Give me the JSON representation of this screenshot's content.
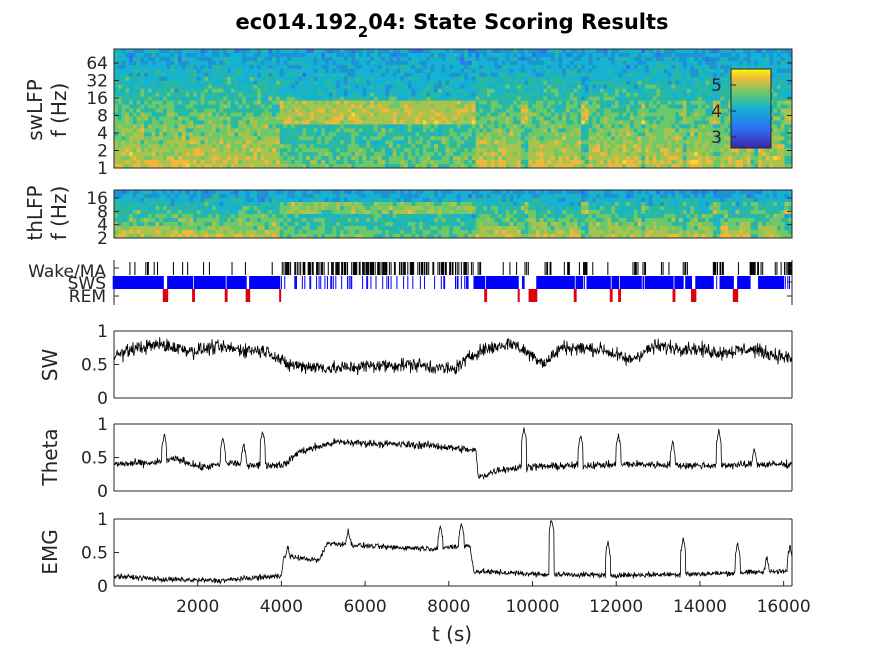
{
  "chart_data": {
    "type": "line",
    "title": {
      "prefix": "ec014.192",
      "sub": "2",
      "suffix": "04: State Scoring Results"
    },
    "xlabel": "t (s)",
    "xlim": [
      0,
      16200
    ],
    "xticks": [
      "2000",
      "4000",
      "6000",
      "8000",
      "10000",
      "12000",
      "14000",
      "16000"
    ],
    "panels": {
      "swlfp": {
        "kind": "spectrogram",
        "ylabel": [
          "swLFP",
          "f (Hz)"
        ],
        "yticks": [
          "1",
          "2",
          "4",
          "8",
          "16",
          "32",
          "64"
        ],
        "colorbar_ticks": [
          "3",
          "4",
          "5"
        ],
        "colors": {
          "low": "#3e26a8",
          "mid": "#2ab8a0",
          "high": "#f9fb0e",
          "warm": "#f2b33a"
        }
      },
      "thlfp": {
        "kind": "spectrogram",
        "ylabel": [
          "thLFP",
          "f (Hz)"
        ],
        "yticks": [
          "2",
          "4",
          "8",
          "16"
        ]
      },
      "states": {
        "kind": "hypnogram",
        "labels": [
          "Wake/MA",
          "SWS",
          "REM"
        ],
        "colors": {
          "wake": "#000000",
          "sws": "#0000ff",
          "rem": "#e0000b"
        },
        "wake_intervals": [
          [
            4000,
            8600
          ],
          [
            9700,
            9900
          ],
          [
            11200,
            11300
          ],
          [
            12600,
            12700
          ],
          [
            13600,
            13700
          ],
          [
            14300,
            14500
          ],
          [
            15200,
            15400
          ],
          [
            16000,
            16200
          ]
        ],
        "rem_intervals": [
          [
            1180,
            1280
          ],
          [
            1880,
            1920
          ],
          [
            2650,
            2700
          ],
          [
            3150,
            3250
          ],
          [
            3950,
            4000
          ],
          [
            4900,
            4950
          ],
          [
            5200,
            5300
          ],
          [
            5550,
            5600
          ],
          [
            6650,
            6700
          ],
          [
            8850,
            8900
          ],
          [
            9650,
            9700
          ],
          [
            9900,
            10100
          ],
          [
            11000,
            11050
          ],
          [
            11850,
            11900
          ],
          [
            12050,
            12100
          ],
          [
            13350,
            13400
          ],
          [
            13800,
            13900
          ],
          [
            14800,
            14900
          ],
          [
            15300,
            15350
          ]
        ]
      },
      "sw": {
        "kind": "trace",
        "ylabel": "SW",
        "ylim": [
          0,
          1
        ],
        "yticks": [
          "0",
          "0.5",
          "1"
        ],
        "profile": [
          [
            0,
            0.62
          ],
          [
            500,
            0.74
          ],
          [
            1100,
            0.8
          ],
          [
            1900,
            0.7
          ],
          [
            2400,
            0.76
          ],
          [
            3100,
            0.72
          ],
          [
            3700,
            0.7
          ],
          [
            4100,
            0.5
          ],
          [
            5300,
            0.44
          ],
          [
            6100,
            0.48
          ],
          [
            7200,
            0.5
          ],
          [
            8100,
            0.42
          ],
          [
            8700,
            0.7
          ],
          [
            9500,
            0.82
          ],
          [
            10300,
            0.52
          ],
          [
            10700,
            0.76
          ],
          [
            11700,
            0.72
          ],
          [
            12300,
            0.56
          ],
          [
            12900,
            0.77
          ],
          [
            13800,
            0.74
          ],
          [
            14500,
            0.68
          ],
          [
            15200,
            0.73
          ],
          [
            16200,
            0.58
          ]
        ]
      },
      "theta": {
        "kind": "trace",
        "ylabel": "Theta",
        "ylim": [
          0,
          1
        ],
        "yticks": [
          "0",
          "0.5",
          "1"
        ],
        "profile": [
          [
            0,
            0.4
          ],
          [
            1000,
            0.42
          ],
          [
            1500,
            0.48
          ],
          [
            2100,
            0.35
          ],
          [
            2800,
            0.42
          ],
          [
            3600,
            0.38
          ],
          [
            4100,
            0.4
          ],
          [
            4400,
            0.58
          ],
          [
            5300,
            0.73
          ],
          [
            6600,
            0.7
          ],
          [
            7600,
            0.68
          ],
          [
            8650,
            0.6
          ],
          [
            8700,
            0.2
          ],
          [
            9200,
            0.32
          ],
          [
            9900,
            0.36
          ],
          [
            11200,
            0.38
          ],
          [
            12500,
            0.4
          ],
          [
            13800,
            0.38
          ],
          [
            16200,
            0.4
          ]
        ],
        "spikes": [
          [
            1200,
            0.85
          ],
          [
            2600,
            0.8
          ],
          [
            3100,
            0.7
          ],
          [
            3550,
            0.9
          ],
          [
            9800,
            0.95
          ],
          [
            11150,
            0.85
          ],
          [
            12050,
            0.85
          ],
          [
            13350,
            0.75
          ],
          [
            14450,
            0.9
          ],
          [
            15300,
            0.65
          ]
        ]
      },
      "emg": {
        "kind": "trace",
        "ylabel": "EMG",
        "ylim": [
          0,
          1
        ],
        "yticks": [
          "0",
          "0.5",
          "1"
        ],
        "profile": [
          [
            0,
            0.15
          ],
          [
            1100,
            0.1
          ],
          [
            2500,
            0.08
          ],
          [
            3300,
            0.12
          ],
          [
            4000,
            0.15
          ],
          [
            4050,
            0.45
          ],
          [
            4900,
            0.38
          ],
          [
            5100,
            0.64
          ],
          [
            6500,
            0.58
          ],
          [
            7600,
            0.56
          ],
          [
            8500,
            0.6
          ],
          [
            8600,
            0.22
          ],
          [
            10000,
            0.18
          ],
          [
            12000,
            0.16
          ],
          [
            14000,
            0.18
          ],
          [
            16200,
            0.22
          ]
        ],
        "spikes": [
          [
            4150,
            0.6
          ],
          [
            5600,
            0.85
          ],
          [
            7800,
            0.9
          ],
          [
            8300,
            0.95
          ],
          [
            10450,
            1.0
          ],
          [
            11800,
            0.65
          ],
          [
            13600,
            0.72
          ],
          [
            14900,
            0.65
          ],
          [
            15600,
            0.45
          ],
          [
            16150,
            0.6
          ]
        ]
      }
    }
  }
}
